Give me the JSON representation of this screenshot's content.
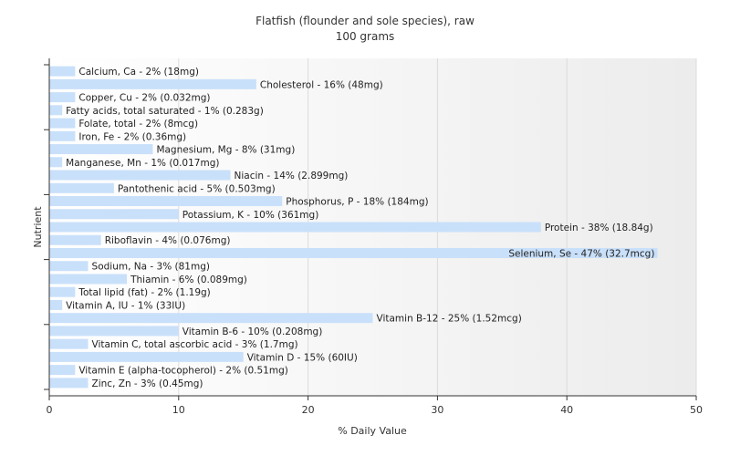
{
  "chart_data": {
    "type": "bar",
    "orientation": "horizontal",
    "title": "Flatfish (flounder and sole species), raw",
    "subtitle": "100 grams",
    "xlabel": "% Daily Value",
    "ylabel": "Nutrient",
    "xlim": [
      0,
      50
    ],
    "xticks": [
      0,
      10,
      20,
      30,
      40,
      50
    ],
    "grid": true,
    "bar_color": "#c9e0fa",
    "categories": [
      "Calcium, Ca",
      "Cholesterol",
      "Copper, Cu",
      "Fatty acids, total saturated",
      "Folate, total",
      "Iron, Fe",
      "Magnesium, Mg",
      "Manganese, Mn",
      "Niacin",
      "Pantothenic acid",
      "Phosphorus, P",
      "Potassium, K",
      "Protein",
      "Riboflavin",
      "Selenium, Se",
      "Sodium, Na",
      "Thiamin",
      "Total lipid (fat)",
      "Vitamin A, IU",
      "Vitamin B-12",
      "Vitamin B-6",
      "Vitamin C, total ascorbic acid",
      "Vitamin D",
      "Vitamin E (alpha-tocopherol)",
      "Zinc, Zn"
    ],
    "values": [
      2,
      16,
      2,
      1,
      2,
      2,
      8,
      1,
      14,
      5,
      18,
      10,
      38,
      4,
      47,
      3,
      6,
      2,
      1,
      25,
      10,
      3,
      15,
      2,
      3
    ],
    "labels": [
      "Calcium, Ca - 2% (18mg)",
      "Cholesterol - 16% (48mg)",
      "Copper, Cu - 2% (0.032mg)",
      "Fatty acids, total saturated - 1% (0.283g)",
      "Folate, total - 2% (8mcg)",
      "Iron, Fe - 2% (0.36mg)",
      "Magnesium, Mg - 8% (31mg)",
      "Manganese, Mn - 1% (0.017mg)",
      "Niacin - 14% (2.899mg)",
      "Pantothenic acid - 5% (0.503mg)",
      "Phosphorus, P - 18% (184mg)",
      "Potassium, K - 10% (361mg)",
      "Protein - 38% (18.84g)",
      "Riboflavin - 4% (0.076mg)",
      "Selenium, Se - 47% (32.7mcg)",
      "Sodium, Na - 3% (81mg)",
      "Thiamin - 6% (0.089mg)",
      "Total lipid (fat) - 2% (1.19g)",
      "Vitamin A, IU - 1% (33IU)",
      "Vitamin B-12 - 25% (1.52mcg)",
      "Vitamin B-6 - 10% (0.208mg)",
      "Vitamin C, total ascorbic acid - 3% (1.7mg)",
      "Vitamin D - 15% (60IU)",
      "Vitamin E (alpha-tocopherol) - 2% (0.51mg)",
      "Zinc, Zn - 3% (0.45mg)"
    ]
  }
}
